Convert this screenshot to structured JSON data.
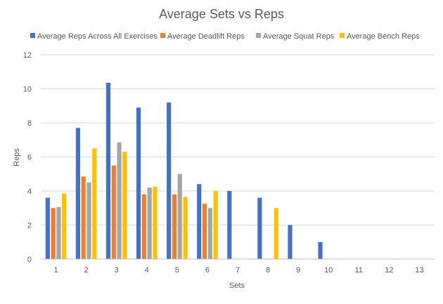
{
  "chart_data": {
    "type": "bar",
    "title": "Average Sets vs Reps",
    "xlabel": "Sets",
    "ylabel": "Reps",
    "ylim": [
      0,
      12
    ],
    "yticks": [
      "0",
      "2",
      "4",
      "6",
      "8",
      "10",
      "12"
    ],
    "categories": [
      "1",
      "2",
      "3",
      "4",
      "5",
      "6",
      "7",
      "8",
      "9",
      "10",
      "11",
      "12",
      "13"
    ],
    "legend_position": "top",
    "grid": true,
    "series": [
      {
        "name": "Average Reps Across All Exercises",
        "color": "#4472C4",
        "values": [
          3.6,
          7.7,
          10.35,
          8.9,
          9.2,
          4.4,
          4.0,
          3.6,
          2.0,
          1.0,
          null,
          null,
          null
        ]
      },
      {
        "name": "Average Deadlift Reps",
        "color": "#ED7D31",
        "values": [
          3.0,
          4.85,
          5.5,
          3.8,
          3.8,
          3.25,
          null,
          null,
          null,
          null,
          null,
          null,
          null
        ]
      },
      {
        "name": "Average Squat Reps",
        "color": "#A5A5A5",
        "values": [
          3.05,
          4.5,
          6.85,
          4.2,
          5.0,
          3.0,
          null,
          null,
          null,
          null,
          null,
          null,
          null
        ]
      },
      {
        "name": "Average Bench Reps",
        "color": "#FFC000",
        "values": [
          3.85,
          6.5,
          6.3,
          4.25,
          3.65,
          4.0,
          null,
          3.0,
          null,
          null,
          null,
          null,
          null
        ]
      }
    ]
  }
}
